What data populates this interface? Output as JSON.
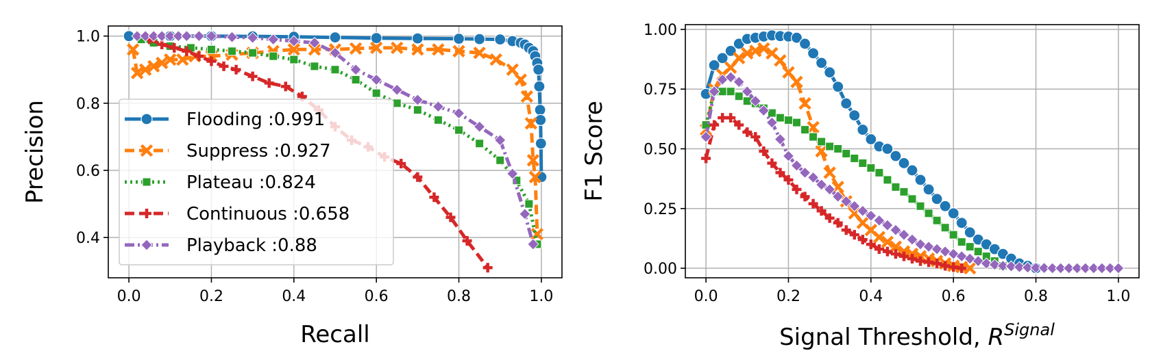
{
  "chart_data": [
    {
      "type": "line",
      "title": "",
      "xlabel": "Recall",
      "ylabel": "Precision",
      "xlim": [
        -0.05,
        1.05
      ],
      "ylim": [
        0.28,
        1.03
      ],
      "xticks": [
        "0.0",
        "0.2",
        "0.4",
        "0.6",
        "0.8",
        "1.0"
      ],
      "xtick_values": [
        0.0,
        0.2,
        0.4,
        0.6,
        0.8,
        1.0
      ],
      "yticks": [
        "0.4",
        "0.6",
        "0.8",
        "1.0"
      ],
      "ytick_values": [
        0.4,
        0.6,
        0.8,
        1.0
      ],
      "grid": true,
      "legend_position": "lower-left",
      "series": [
        {
          "name": "Flooding :0.991",
          "color": "#1f77b4",
          "dash": "solid",
          "marker": "circle",
          "x": [
            0.0,
            0.1,
            0.2,
            0.3,
            0.4,
            0.5,
            0.6,
            0.7,
            0.8,
            0.85,
            0.9,
            0.93,
            0.95,
            0.96,
            0.97,
            0.98,
            0.985,
            0.99,
            0.993,
            0.995,
            0.997,
            0.998,
            0.999,
            1.0
          ],
          "y": [
            1.0,
            1.0,
            1.0,
            0.999,
            0.998,
            0.996,
            0.994,
            0.993,
            0.992,
            0.991,
            0.99,
            0.985,
            0.98,
            0.975,
            0.965,
            0.955,
            0.94,
            0.92,
            0.9,
            0.85,
            0.78,
            0.75,
            0.68,
            0.58
          ]
        },
        {
          "name": "Suppress :0.927",
          "color": "#ff7f0e",
          "dash": "dashed",
          "marker": "x",
          "x": [
            0.01,
            0.02,
            0.04,
            0.06,
            0.08,
            0.1,
            0.13,
            0.16,
            0.2,
            0.25,
            0.3,
            0.35,
            0.4,
            0.45,
            0.5,
            0.55,
            0.6,
            0.65,
            0.7,
            0.75,
            0.8,
            0.85,
            0.89,
            0.93,
            0.95,
            0.965,
            0.975,
            0.98,
            0.985,
            0.99
          ],
          "y": [
            0.96,
            0.89,
            0.9,
            0.91,
            0.92,
            0.93,
            0.93,
            0.94,
            0.94,
            0.945,
            0.95,
            0.955,
            0.96,
            0.96,
            0.96,
            0.963,
            0.965,
            0.965,
            0.96,
            0.96,
            0.955,
            0.95,
            0.93,
            0.9,
            0.87,
            0.82,
            0.74,
            0.63,
            0.58,
            0.41
          ]
        },
        {
          "name": "Plateau :0.824",
          "color": "#2ca02c",
          "dash": "dotted",
          "marker": "square",
          "x": [
            0.03,
            0.06,
            0.1,
            0.15,
            0.2,
            0.25,
            0.3,
            0.35,
            0.4,
            0.45,
            0.5,
            0.55,
            0.6,
            0.65,
            0.7,
            0.75,
            0.8,
            0.85,
            0.9,
            0.94,
            0.97,
            0.99
          ],
          "y": [
            0.99,
            0.98,
            0.97,
            0.965,
            0.96,
            0.955,
            0.95,
            0.94,
            0.93,
            0.91,
            0.9,
            0.87,
            0.83,
            0.8,
            0.78,
            0.75,
            0.72,
            0.68,
            0.63,
            0.57,
            0.5,
            0.38
          ]
        },
        {
          "name": "Continuous :0.658",
          "color": "#d62728",
          "dash": "dashed",
          "marker": "plus",
          "x": [
            0.05,
            0.08,
            0.11,
            0.14,
            0.17,
            0.2,
            0.23,
            0.26,
            0.3,
            0.34,
            0.38,
            0.42,
            0.46,
            0.5,
            0.54,
            0.58,
            0.62,
            0.66,
            0.7,
            0.74,
            0.78,
            0.82,
            0.87
          ],
          "y": [
            0.99,
            0.975,
            0.965,
            0.955,
            0.94,
            0.925,
            0.91,
            0.9,
            0.88,
            0.86,
            0.85,
            0.82,
            0.78,
            0.73,
            0.69,
            0.67,
            0.64,
            0.62,
            0.58,
            0.52,
            0.46,
            0.39,
            0.31
          ]
        },
        {
          "name": "Playback :0.88",
          "color": "#9467bd",
          "dash": "dashdot",
          "marker": "diamond",
          "x": [
            0.02,
            0.04,
            0.06,
            0.08,
            0.1,
            0.12,
            0.14,
            0.17,
            0.2,
            0.25,
            0.3,
            0.35,
            0.4,
            0.45,
            0.5,
            0.55,
            0.6,
            0.65,
            0.7,
            0.75,
            0.8,
            0.85,
            0.9,
            0.93,
            0.96,
            0.98
          ],
          "y": [
            1.0,
            1.0,
            1.0,
            1.0,
            1.0,
            1.0,
            1.0,
            1.0,
            1.0,
            0.997,
            0.995,
            0.99,
            0.985,
            0.98,
            0.95,
            0.9,
            0.87,
            0.84,
            0.81,
            0.79,
            0.77,
            0.73,
            0.69,
            0.59,
            0.47,
            0.38
          ]
        }
      ]
    },
    {
      "type": "line",
      "title": "",
      "xlabel": "Signal Threshold, ",
      "xlabel_symbol": "R",
      "xlabel_superscript": "Signal",
      "ylabel": "F1 Score",
      "xlim": [
        -0.05,
        1.05
      ],
      "ylim": [
        -0.04,
        1.02
      ],
      "xticks": [
        "0.0",
        "0.2",
        "0.4",
        "0.6",
        "0.8",
        "1.0"
      ],
      "xtick_values": [
        0.0,
        0.2,
        0.4,
        0.6,
        0.8,
        1.0
      ],
      "yticks": [
        "0.00",
        "0.25",
        "0.50",
        "0.75",
        "1.00"
      ],
      "ytick_values": [
        0.0,
        0.25,
        0.5,
        0.75,
        1.0
      ],
      "grid": true,
      "series": [
        {
          "name": "Flooding",
          "color": "#1f77b4",
          "dash": "solid",
          "marker": "circle",
          "x": [
            0.0,
            0.02,
            0.04,
            0.06,
            0.08,
            0.1,
            0.12,
            0.14,
            0.16,
            0.18,
            0.2,
            0.22,
            0.24,
            0.26,
            0.28,
            0.3,
            0.32,
            0.34,
            0.36,
            0.38,
            0.4,
            0.42,
            0.44,
            0.46,
            0.48,
            0.5,
            0.52,
            0.54,
            0.56,
            0.58,
            0.6,
            0.62,
            0.64,
            0.66,
            0.68,
            0.7,
            0.72,
            0.74,
            0.76,
            0.78,
            0.8
          ],
          "y": [
            0.73,
            0.85,
            0.88,
            0.91,
            0.94,
            0.96,
            0.965,
            0.97,
            0.975,
            0.972,
            0.97,
            0.965,
            0.94,
            0.9,
            0.86,
            0.82,
            0.76,
            0.69,
            0.64,
            0.58,
            0.54,
            0.51,
            0.5,
            0.47,
            0.44,
            0.41,
            0.37,
            0.33,
            0.29,
            0.26,
            0.23,
            0.19,
            0.15,
            0.12,
            0.1,
            0.08,
            0.06,
            0.04,
            0.02,
            0.01,
            0.0
          ]
        },
        {
          "name": "Suppress",
          "color": "#ff7f0e",
          "dash": "dashed",
          "marker": "x",
          "x": [
            0.0,
            0.02,
            0.04,
            0.06,
            0.08,
            0.1,
            0.12,
            0.14,
            0.16,
            0.18,
            0.2,
            0.22,
            0.24,
            0.26,
            0.28,
            0.3,
            0.32,
            0.34,
            0.36,
            0.38,
            0.4,
            0.42,
            0.44,
            0.46,
            0.48,
            0.5,
            0.52,
            0.54,
            0.56,
            0.58,
            0.6,
            0.62,
            0.64
          ],
          "y": [
            0.58,
            0.75,
            0.81,
            0.84,
            0.88,
            0.9,
            0.91,
            0.92,
            0.9,
            0.87,
            0.82,
            0.78,
            0.69,
            0.59,
            0.49,
            0.4,
            0.34,
            0.28,
            0.23,
            0.19,
            0.16,
            0.13,
            0.11,
            0.09,
            0.07,
            0.06,
            0.05,
            0.04,
            0.03,
            0.02,
            0.01,
            0.005,
            0.0
          ]
        },
        {
          "name": "Plateau",
          "color": "#2ca02c",
          "dash": "dotted",
          "marker": "square",
          "x": [
            0.0,
            0.02,
            0.04,
            0.06,
            0.08,
            0.1,
            0.12,
            0.14,
            0.16,
            0.18,
            0.2,
            0.22,
            0.24,
            0.26,
            0.28,
            0.3,
            0.32,
            0.34,
            0.36,
            0.38,
            0.4,
            0.42,
            0.44,
            0.46,
            0.48,
            0.5,
            0.52,
            0.54,
            0.56,
            0.58,
            0.6,
            0.62,
            0.64,
            0.66,
            0.68,
            0.7,
            0.72
          ],
          "y": [
            0.6,
            0.74,
            0.74,
            0.74,
            0.72,
            0.7,
            0.69,
            0.67,
            0.65,
            0.63,
            0.62,
            0.61,
            0.58,
            0.55,
            0.53,
            0.51,
            0.5,
            0.48,
            0.46,
            0.44,
            0.42,
            0.4,
            0.37,
            0.34,
            0.32,
            0.29,
            0.26,
            0.23,
            0.2,
            0.17,
            0.14,
            0.11,
            0.09,
            0.07,
            0.05,
            0.03,
            0.01
          ]
        },
        {
          "name": "Continuous",
          "color": "#d62728",
          "dash": "dashed",
          "marker": "plus",
          "x": [
            0.0,
            0.02,
            0.04,
            0.06,
            0.08,
            0.1,
            0.12,
            0.14,
            0.16,
            0.18,
            0.2,
            0.22,
            0.24,
            0.26,
            0.28,
            0.3,
            0.32,
            0.34,
            0.36,
            0.38,
            0.4,
            0.42,
            0.44,
            0.46,
            0.48,
            0.5,
            0.52,
            0.54,
            0.56,
            0.58,
            0.6,
            0.62
          ],
          "y": [
            0.46,
            0.6,
            0.63,
            0.63,
            0.6,
            0.57,
            0.55,
            0.49,
            0.44,
            0.4,
            0.37,
            0.33,
            0.3,
            0.27,
            0.24,
            0.21,
            0.19,
            0.16,
            0.14,
            0.12,
            0.1,
            0.08,
            0.07,
            0.06,
            0.05,
            0.04,
            0.03,
            0.025,
            0.02,
            0.01,
            0.005,
            0.0
          ]
        },
        {
          "name": "Playback",
          "color": "#9467bd",
          "dash": "dashdot",
          "marker": "diamond",
          "x": [
            0.0,
            0.02,
            0.04,
            0.06,
            0.08,
            0.1,
            0.12,
            0.14,
            0.16,
            0.18,
            0.2,
            0.22,
            0.24,
            0.26,
            0.28,
            0.3,
            0.32,
            0.34,
            0.36,
            0.38,
            0.4,
            0.42,
            0.44,
            0.46,
            0.48,
            0.5,
            0.52,
            0.54,
            0.56,
            0.58,
            0.6,
            0.62,
            0.64,
            0.66,
            0.68,
            0.7,
            0.72,
            0.74,
            0.76,
            0.78,
            0.8,
            0.82,
            0.84,
            0.86,
            0.88,
            0.9,
            0.92,
            0.94,
            0.96,
            0.98,
            1.0
          ],
          "y": [
            0.55,
            0.74,
            0.79,
            0.8,
            0.78,
            0.74,
            0.7,
            0.66,
            0.61,
            0.54,
            0.47,
            0.43,
            0.4,
            0.38,
            0.35,
            0.33,
            0.3,
            0.28,
            0.26,
            0.24,
            0.22,
            0.2,
            0.18,
            0.16,
            0.14,
            0.12,
            0.1,
            0.09,
            0.08,
            0.07,
            0.06,
            0.05,
            0.04,
            0.03,
            0.02,
            0.015,
            0.01,
            0.008,
            0.005,
            0.003,
            0.002,
            0.001,
            0.0,
            0.0,
            0.0,
            0.0,
            0.0,
            0.0,
            0.0,
            0.0,
            0.0
          ]
        }
      ]
    }
  ]
}
